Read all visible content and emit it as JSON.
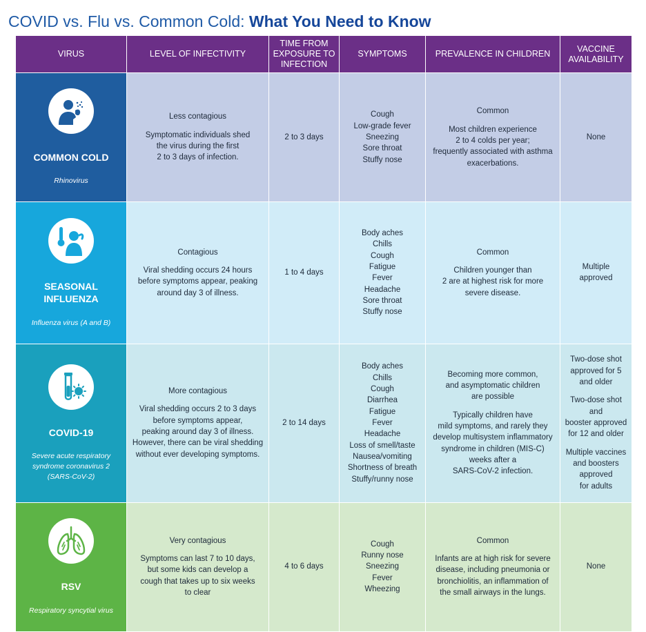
{
  "title": {
    "regular": "COVID vs. Flu vs. Common Cold: ",
    "bold": "What You Need to Know"
  },
  "headers": [
    "VIRUS",
    "LEVEL OF INFECTIVITY",
    "TIME FROM EXPOSURE TO INFECTION",
    "SYMPTOMS",
    "PREVALENCE IN CHILDREN",
    "VACCINE AVAILABILITY"
  ],
  "rows": [
    {
      "name": "COMMON COLD",
      "scientific": "Rhinovirus",
      "icon": "sneezing-person-icon",
      "infectivity": [
        "Less contagious",
        "Symptomatic individuals shed\nthe virus during the first\n2 to 3 days of infection."
      ],
      "time": "2 to 3 days",
      "symptoms": "Cough\nLow-grade fever\nSneezing\nSore throat\nStuffy nose",
      "prevalence": [
        "Common",
        "Most children experience\n2 to 4 colds per year;\nfrequently associated with asthma\nexacerbations."
      ],
      "vaccine": [
        "None"
      ]
    },
    {
      "name": "SEASONAL\nINFLUENZA",
      "scientific": "Influenza virus (A and B)",
      "icon": "person-with-thermometer-icon",
      "infectivity": [
        "Contagious",
        "Viral shedding occurs 24 hours\nbefore symptoms appear, peaking\naround day 3 of illness."
      ],
      "time": "1 to 4 days",
      "symptoms": "Body aches\nChills\nCough\nFatigue\nFever\nHeadache\nSore throat\nStuffy nose",
      "prevalence": [
        "Common",
        "Children younger than\n2 are at highest risk for more\nsevere disease."
      ],
      "vaccine": [
        "Multiple\napproved"
      ]
    },
    {
      "name": "COVID-19",
      "scientific": "Severe acute respiratory\nsyndrome coronavirus 2\n(SARS-CoV-2)",
      "icon": "test-tube-virus-icon",
      "infectivity": [
        "More contagious",
        "Viral shedding occurs 2 to 3 days\nbefore symptoms appear,\npeaking around day 3 of illness.\nHowever, there can be viral shedding\nwithout ever developing symptoms."
      ],
      "time": "2 to 14 days",
      "symptoms": "Body aches\nChills\nCough\nDiarrhea\nFatigue\nFever\nHeadache\nLoss of smell/taste\nNausea/vomiting\nShortness of breath\nStuffy/runny nose",
      "prevalence": [
        "Becoming more common,\nand asymptomatic children\nare possible",
        "Typically children have\nmild symptoms, and rarely they\ndevelop multisystem inflammatory\nsyndrome in children (MIS-C)\nweeks after a\nSARS-CoV-2 infection."
      ],
      "vaccine": [
        "Two-dose shot\napproved for 5\nand older",
        "Two-dose shot and\nbooster approved\nfor 12 and older",
        "Multiple vaccines\nand boosters\napproved\nfor adults"
      ]
    },
    {
      "name": "RSV",
      "scientific": "Respiratory syncytial virus",
      "icon": "lungs-icon",
      "infectivity": [
        "Very contagious",
        "Symptoms can last 7 to 10 days,\nbut some kids can develop a\ncough that takes up to six weeks\nto clear"
      ],
      "time": "4 to 6 days",
      "symptoms": "Cough\nRunny nose\nSneezing\nFever\nWheezing",
      "prevalence": [
        "Common",
        "Infants are at high risk for severe\ndisease, including pneumonia or\nbronchiolitis, an inflammation of\nthe small airways in the lungs."
      ],
      "vaccine": [
        "None"
      ]
    }
  ],
  "colors": {
    "header": "#6b2f87",
    "common_cold": "#1f5d9f",
    "influenza": "#17a7dc",
    "covid": "#1aa0bd",
    "rsv": "#5db446"
  }
}
